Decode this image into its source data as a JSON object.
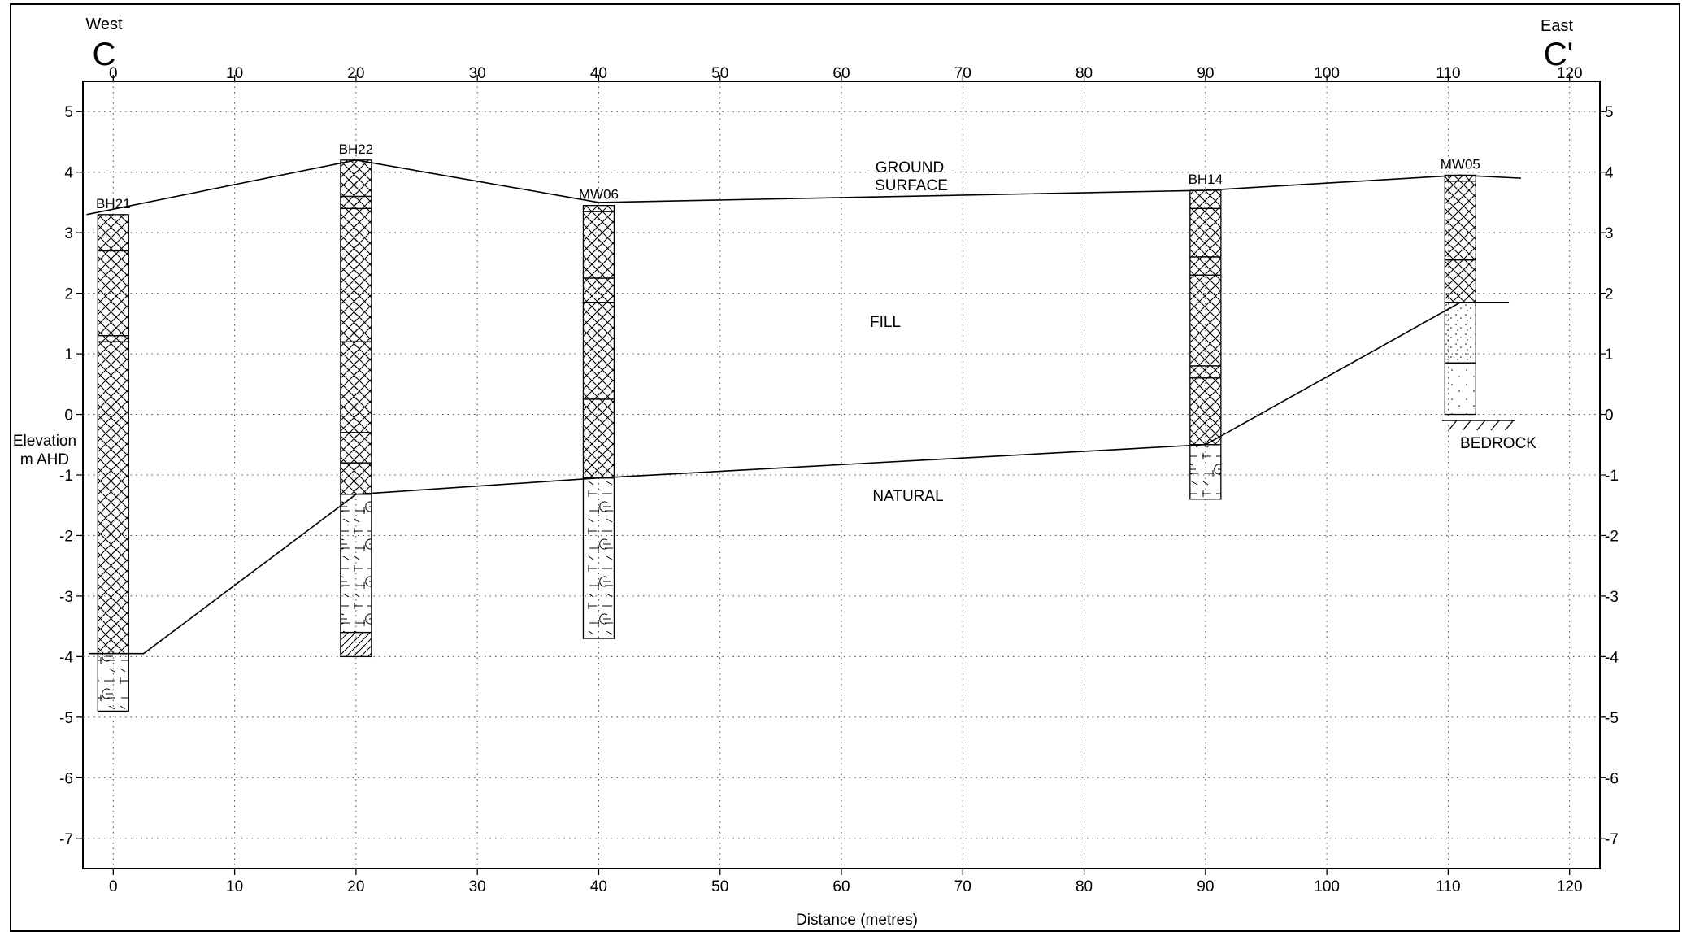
{
  "section": {
    "start_letter": "C",
    "end_letter": "C'",
    "start_direction": "West",
    "end_direction": "East"
  },
  "axes": {
    "x_label": "Distance (metres)",
    "y_label_line1": "Elevation",
    "y_label_line2": "m AHD",
    "x_range": [
      -2.5,
      122.5
    ],
    "y_range": [
      -7.5,
      5.5
    ],
    "x_ticks": [
      0,
      10,
      20,
      30,
      40,
      50,
      60,
      70,
      80,
      90,
      100,
      110,
      120
    ],
    "y_ticks": [
      5,
      4,
      3,
      2,
      1,
      0,
      -1,
      -2,
      -3,
      -4,
      -5,
      -6,
      -7
    ],
    "grid": "dotted"
  },
  "labels": {
    "ground_surface_1": "GROUND",
    "ground_surface_2": "SURFACE",
    "fill": "FILL",
    "natural": "NATURAL",
    "bedrock": "BEDROCK"
  },
  "chart_data": {
    "type": "cross-section",
    "ground_surface": [
      [
        -2.2,
        3.3
      ],
      [
        20,
        4.2
      ],
      [
        40,
        3.5
      ],
      [
        90,
        3.7
      ],
      [
        111,
        3.95
      ],
      [
        116,
        3.9
      ]
    ],
    "fill_base": [
      [
        -2,
        -3.95
      ],
      [
        2.5,
        -3.95
      ],
      [
        20,
        -1.32
      ],
      [
        40,
        -1.05
      ],
      [
        90,
        -0.5
      ],
      [
        111,
        1.85
      ],
      [
        115,
        1.85
      ]
    ],
    "bedrock": {
      "x": [
        109.5,
        115.5
      ],
      "y": -0.1
    },
    "boreholes": [
      {
        "name": "BH21",
        "x": 0,
        "top": 3.3,
        "bottom": -4.9,
        "layers": [
          {
            "top": 3.3,
            "bottom": 2.7,
            "pattern": "fill"
          },
          {
            "top": 2.7,
            "bottom": 1.3,
            "pattern": "fill"
          },
          {
            "top": 1.3,
            "bottom": 1.2,
            "pattern": "fill"
          },
          {
            "top": 1.2,
            "bottom": -3.95,
            "pattern": "fill"
          },
          {
            "top": -3.95,
            "bottom": -4.9,
            "pattern": "natural"
          }
        ]
      },
      {
        "name": "BH22",
        "x": 20,
        "top": 4.2,
        "bottom": -4.0,
        "layers": [
          {
            "top": 4.2,
            "bottom": 3.6,
            "pattern": "fill"
          },
          {
            "top": 3.6,
            "bottom": 3.4,
            "pattern": "fill"
          },
          {
            "top": 3.4,
            "bottom": 1.2,
            "pattern": "fill"
          },
          {
            "top": 1.2,
            "bottom": -0.3,
            "pattern": "fill"
          },
          {
            "top": -0.3,
            "bottom": -0.8,
            "pattern": "fill"
          },
          {
            "top": -0.8,
            "bottom": -1.32,
            "pattern": "fill"
          },
          {
            "top": -1.32,
            "bottom": -3.6,
            "pattern": "natural"
          },
          {
            "top": -3.6,
            "bottom": -4.0,
            "pattern": "hatch"
          }
        ]
      },
      {
        "name": "MW06",
        "x": 40,
        "top": 3.45,
        "bottom": -3.7,
        "layers": [
          {
            "top": 3.45,
            "bottom": 3.35,
            "pattern": "fill"
          },
          {
            "top": 3.35,
            "bottom": 2.25,
            "pattern": "fill"
          },
          {
            "top": 2.25,
            "bottom": 1.85,
            "pattern": "fill"
          },
          {
            "top": 1.85,
            "bottom": 0.25,
            "pattern": "fill"
          },
          {
            "top": 0.25,
            "bottom": -1.05,
            "pattern": "fill"
          },
          {
            "top": -1.05,
            "bottom": -3.7,
            "pattern": "natural"
          }
        ]
      },
      {
        "name": "BH14",
        "x": 90,
        "top": 3.7,
        "bottom": -1.4,
        "layers": [
          {
            "top": 3.7,
            "bottom": 3.4,
            "pattern": "fill"
          },
          {
            "top": 3.4,
            "bottom": 2.6,
            "pattern": "fill"
          },
          {
            "top": 2.6,
            "bottom": 2.3,
            "pattern": "fill"
          },
          {
            "top": 2.3,
            "bottom": 0.8,
            "pattern": "fill"
          },
          {
            "top": 0.8,
            "bottom": 0.6,
            "pattern": "fill"
          },
          {
            "top": 0.6,
            "bottom": -0.5,
            "pattern": "fill"
          },
          {
            "top": -0.5,
            "bottom": -1.4,
            "pattern": "natural"
          }
        ]
      },
      {
        "name": "MW05",
        "x": 111,
        "top": 3.95,
        "bottom": 0.0,
        "layers": [
          {
            "top": 3.95,
            "bottom": 3.85,
            "pattern": "fill"
          },
          {
            "top": 3.85,
            "bottom": 2.55,
            "pattern": "fill"
          },
          {
            "top": 2.55,
            "bottom": 1.85,
            "pattern": "fill"
          },
          {
            "top": 1.85,
            "bottom": 0.85,
            "pattern": "sand"
          },
          {
            "top": 0.85,
            "bottom": 0.0,
            "pattern": "sand-sparse"
          }
        ]
      }
    ]
  }
}
